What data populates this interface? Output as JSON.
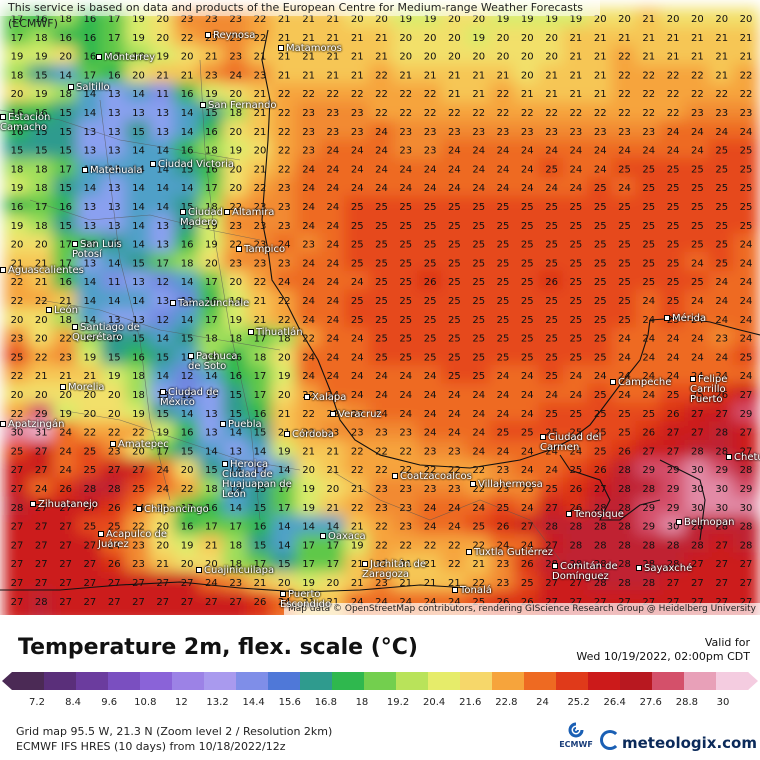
{
  "attribution_top": "This service is based on data and products of the European Centre for Medium-range Weather Forecasts (ECMWF)",
  "attribution_bottom": "Map data © OpenStreetMap contributors, rendering GIScience Research Group @ Heidelberg University",
  "title": "Temperature 2m, flex. scale (°C)",
  "valid_label": "Valid for",
  "valid_time": "Wed 10/19/2022, 02:00pm CDT",
  "scale": {
    "labels": [
      "7.2",
      "8.4",
      "9.6",
      "10.8",
      "12",
      "13.2",
      "14.4",
      "15.6",
      "16.8",
      "18",
      "19.2",
      "20.4",
      "21.6",
      "22.8",
      "24",
      "25.2",
      "26.4",
      "27.6",
      "28.8",
      "30"
    ],
    "colors": [
      "#4b2a55",
      "#5a2f7a",
      "#6b3c9e",
      "#7a4fc0",
      "#8a63d8",
      "#9c82e6",
      "#a99aee",
      "#7f8ee8",
      "#4f78d8",
      "#2f9b8e",
      "#2fb84e",
      "#73cf4e",
      "#b9e35a",
      "#e6ec6a",
      "#f6d76a",
      "#f6a43c",
      "#ee6a22",
      "#e03a1a",
      "#cc1a1a",
      "#b81820",
      "#d4506a",
      "#e8a0b8",
      "#f4cce0"
    ]
  },
  "info_line1": "Grid map 95.5 W, 21.3 N (Zoom level 2 / Resolution 2km)",
  "info_line2": "ECMWF IFS HRES (10 days) from 10/18/2022/12z",
  "ecmwf_label": "ECMWF",
  "brand": "meteologix.com",
  "cities": [
    "Reynosa",
    "Matamoros",
    "Monterrey",
    "Saltillo",
    "San Fernando",
    "Estación Camacho",
    "Matehuala",
    "Ciudad Victoria",
    "Ciudad Madero",
    "Altamira",
    "San Luis Potosí",
    "Tampico",
    "Aguascalientes",
    "Tamazunchale",
    "León",
    "Santiago de Querétaro",
    "Tihuatlán",
    "Pachuca de Soto",
    "Mérida",
    "Campeche",
    "Xalapa",
    "Ciudad de México",
    "Morelia",
    "Veracruz",
    "Puebla",
    "Córdoba",
    "Apatzingán",
    "Amatepec",
    "Heroica Ciudad de Huajuapan de León",
    "Coatzacoalcos",
    "Villahermosa",
    "Ciudad del Carmen",
    "Chetumal",
    "Zihuatanejo",
    "Chilpancingo",
    "Acapulco de Juárez",
    "Oaxaca",
    "Tuxtla Gutiérrez",
    "Juchitán de Zaragoza",
    "Comitán de Domínguez",
    "Tenosique",
    "Sayaxché",
    "Belmopan",
    "Cuajinicuilapa",
    "Puerto Escondido",
    "Tonalá",
    "Felipe Carrillo Puerto"
  ],
  "temps": [
    "17 16 18 16 17 19 20 23 23 23 22 21 21 21 20 20 19 19 20 20 19 19 19 19 20 20 21 20 20 20 20",
    "17 18 16 16 17 19 20 22 23 23 22 21 21 21 21 21 20 20 20 19 20 20 20 21 21 21 21 21 21 21 21",
    "19 19 20 16 17 18 19 20 21 23 21 21 21 21 21 21 20 20 20 20 20 20 20 21 21 22 21 21 21 21 21",
    "18 15 14 17 16 20 21 21 23 24 23 21 21 21 21 22 21 21 21 21 21 20 21 21 21 22 22 22 22 21 22",
    "20 19 18 14 13 14 11 16 19 20 21 22 22 22 22 22 22 22 21 21 22 21 21 21 21 22 22 22 22 22 22",
    "16 16 15 14 13 13 13 14 15 18 21 22 23 23 23 22 22 22 22 22 22 22 22 22 22 22 22 22 23 23 23",
    "16 15 15 13 13 15 13 14 16 20 21 22 23 23 23 24 23 23 23 23 23 23 23 23 23 23 23 24 24 24 24",
    "15 15 15 13 13 14 14 16 18 19 20 22 23 24 24 24 23 23 24 24 24 24 24 24 24 24 24 24 24 25 25",
    "18 18 17 14 14 14 14 15 16 20 21 22 24 24 24 24 24 24 24 24 24 24 25 24 24 25 25 25 25 25 25",
    "19 18 15 14 13 14 14 14 17 20 22 23 24 24 24 24 24 24 24 24 24 24 24 24 25 24 25 25 25 25 25",
    "16 17 16 13 13 14 14 15 18 22 23 23 24 24 25 25 25 25 25 25 25 25 25 25 25 25 25 25 25 25 25",
    "19 18 15 13 13 14 13 15 19 23 23 23 24 24 25 25 25 25 25 25 25 25 25 25 25 25 25 25 25 25 25",
    "20 20 17 16 15 14 13 16 19 22 23 24 23 24 25 25 25 25 25 25 25 25 25 25 25 25 25 25 25 25 24",
    "21 21 17 13 14 15 17 18 20 23 23 23 24 24 25 25 25 25 25 25 25 25 25 25 25 25 25 25 24 25 24",
    "22 21 16 14 11 13 12 14 17 20 22 24 24 24 24 25 25 26 25 25 25 25 26 25 25 25 25 25 25 24 24",
    "22 22 21 14 14 14 13 12 16 19 21 22 24 24 25 25 25 25 25 25 25 25 25 25 25 25 24 25 24 24 24",
    "20 20 18 14 13 13 12 14 17 19 21 22 24 24 25 25 25 25 25 25 25 25 25 25 25 25 24 25 24 24 24",
    "23 20 22 18 15 15 14 15 18 18 17 18 22 24 24 25 25 25 25 25 25 25 25 25 25 24 24 24 24 23 24",
    "25 22 23 19 15 16 15 14 18 16 18 20 24 24 24 25 25 25 25 25 25 25 25 25 25 24 24 24 24 24 25",
    "22 21 21 21 19 18 14 12 14 16 17 19 24 24 24 24 24 24 25 25 24 24 25 24 24 24 24 24 24 24 24",
    "20 20 20 20 20 18 13 12 13 15 17 20 22 24 24 24 24 24 24 24 24 24 24 24 25 24 24 25 25 26 27",
    "22 29 19 20 20 19 15 14 13 15 16 21 22 22 23 24 24 24 24 24 24 24 25 25 25 25 25 26 27 27 29",
    "30 31 24 22 22 22 19 16 13 14 15 21 22 23 23 23 23 24 24 24 25 25 25 25 25 25 26 27 27 28 27",
    "25 27 24 25 23 20 17 15 14 13 14 19 21 21 22 22 22 23 23 24 24 24 24 24 25 26 27 27 28 28 27",
    "27 27 24 25 27 27 24 20 15 14 13 14 20 21 22 22 22 22 22 22 23 24 24 25 26 28 29 29 30 29 28",
    "27 24 26 28 28 25 24 22 18 14 15 17 19 20 21 23 23 23 23 22 23 23 25 26 27 28 28 29 30 30 29",
    "28 27 27 27 26 24 21 17 16 14 15 17 19 21 22 23 23 24 24 24 25 24 27 26 28 28 29 29 30 30 30",
    "27 27 27 25 25 22 20 16 17 17 16 14 14 14 21 22 23 24 24 25 26 27 28 28 28 28 29 30 28 28 28",
    "27 27 27 27 24 23 20 19 21 18 15 14 17 17 19 22 22 22 22 22 24 24 27 28 28 28 28 28 28 27 28",
    "27 27 27 27 26 23 21 20 20 18 17 15 17 17 21 22 21 21 22 21 23 26 28 28 28 28 28 28 27 27 27",
    "27 27 27 27 27 27 27 27 24 23 21 20 19 20 21 23 21 21 21 22 23 25 27 27 28 28 28 27 27 27 27",
    "27 28 27 27 27 27 27 27 27 27 26 24 21 21 24 24 24 24 24 25 26 26 27 27 27 27 27 27 27 27 27"
  ]
}
